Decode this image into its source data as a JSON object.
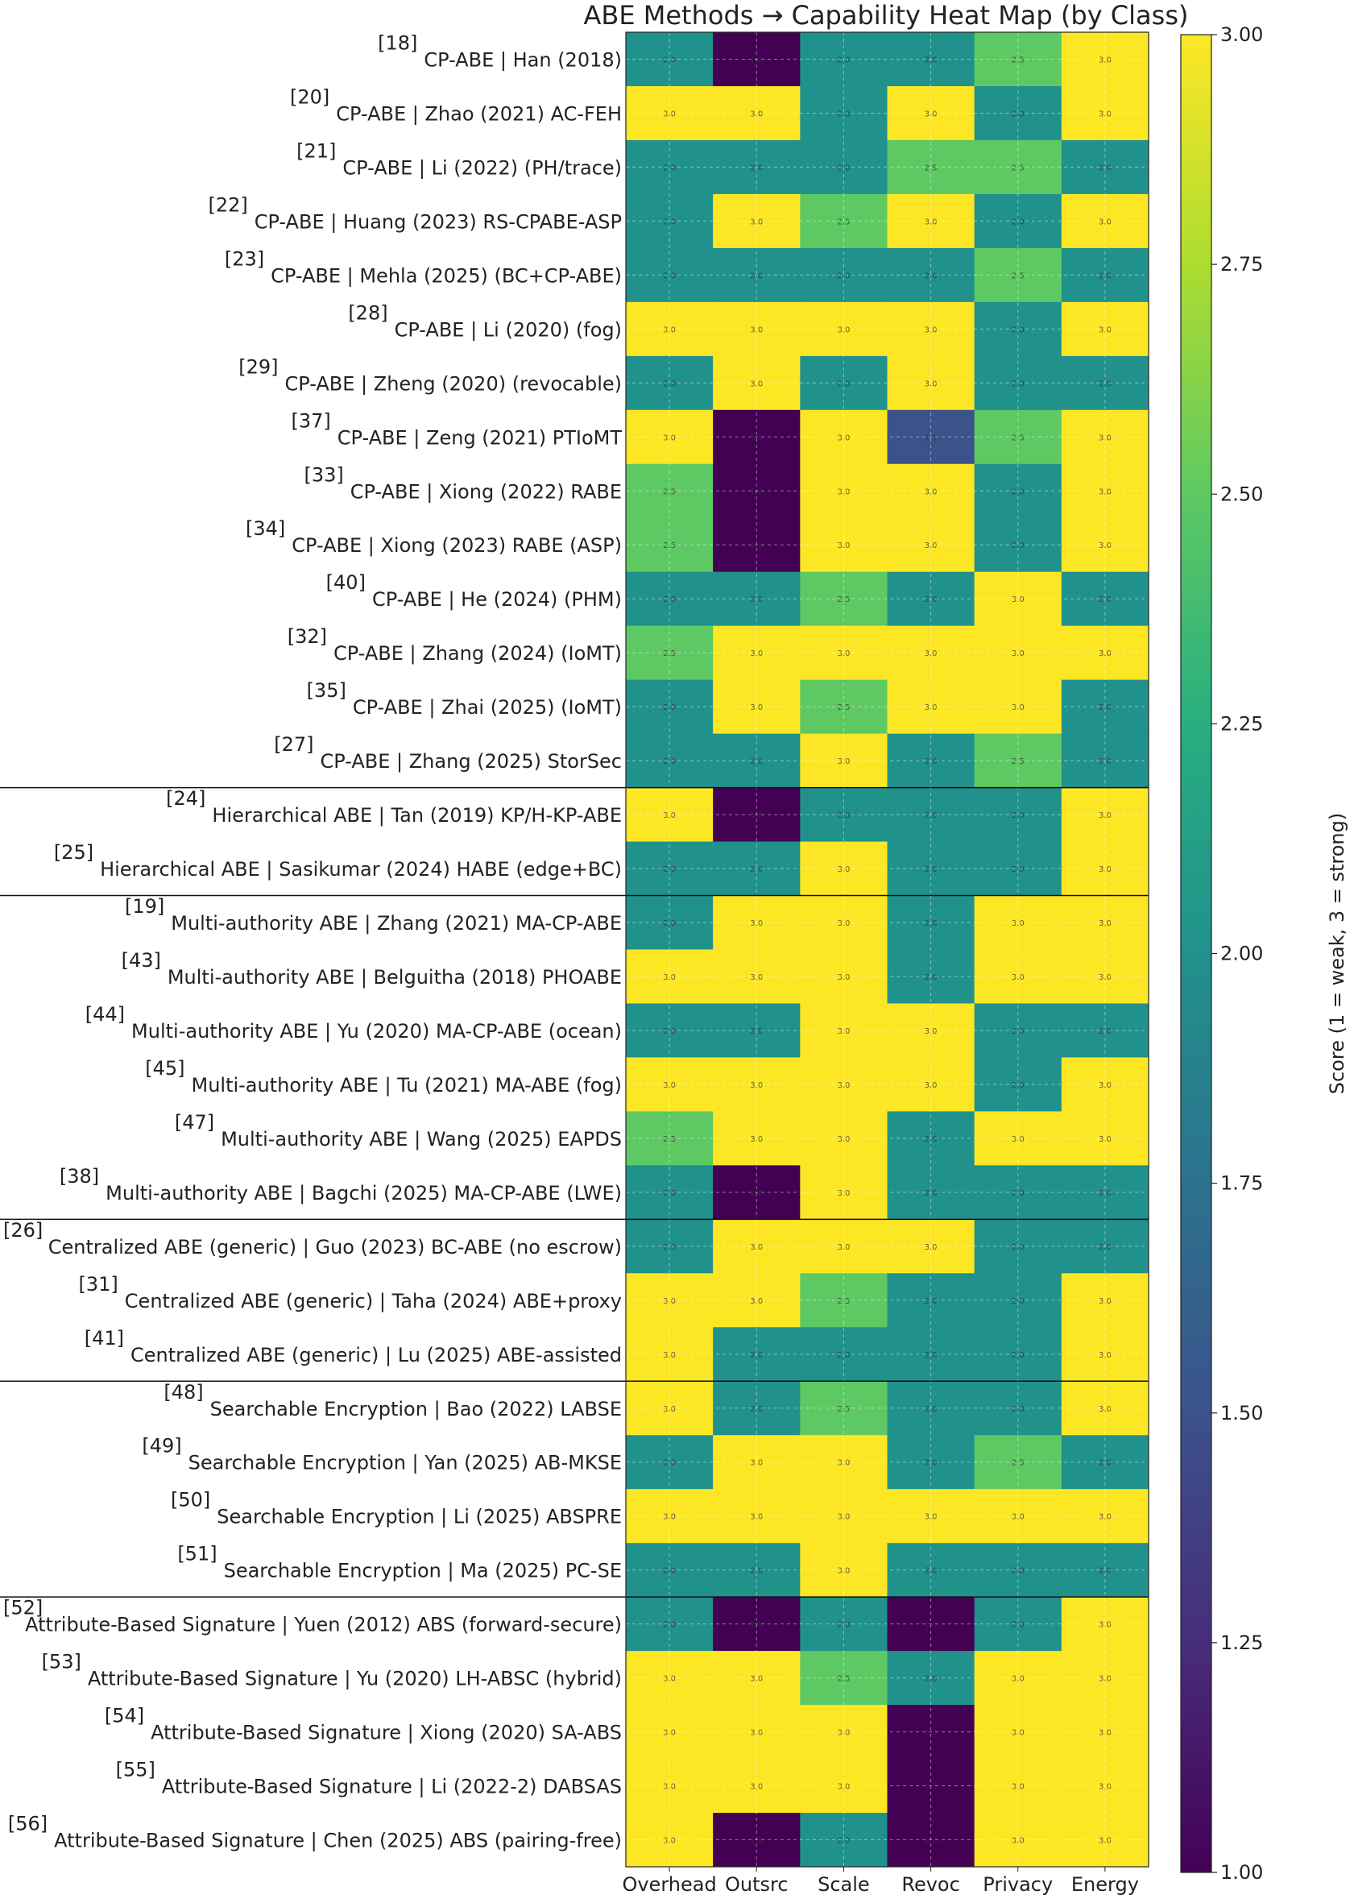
{
  "chart_data": {
    "type": "heatmap",
    "title": "ABE Methods → Capability Heat Map (by Class)",
    "columns": [
      "Overhead",
      "Outsrc",
      "Scale",
      "Revoc",
      "Privacy",
      "Energy"
    ],
    "rows": [
      {
        "ref": "[18]",
        "label": "CP-ABE | Han (2018)",
        "values": [
          2.0,
          1.0,
          2.0,
          2.0,
          2.5,
          3.0
        ]
      },
      {
        "ref": "[20]",
        "label": "CP-ABE | Zhao (2021) AC-FEH",
        "values": [
          3.0,
          3.0,
          2.0,
          3.0,
          2.0,
          3.0
        ]
      },
      {
        "ref": "[21]",
        "label": "CP-ABE | Li (2022) (PH/trace)",
        "values": [
          2.0,
          2.0,
          2.0,
          2.5,
          2.5,
          2.0
        ]
      },
      {
        "ref": "[22]",
        "label": "CP-ABE | Huang (2023) RS-CPABE-ASP",
        "values": [
          2.0,
          3.0,
          2.5,
          3.0,
          2.0,
          3.0
        ]
      },
      {
        "ref": "[23]",
        "label": "CP-ABE | Mehla (2025) (BC+CP-ABE)",
        "values": [
          2.0,
          2.0,
          2.0,
          2.0,
          2.5,
          2.0
        ]
      },
      {
        "ref": "[28]",
        "label": "CP-ABE | Li (2020) (fog)",
        "values": [
          3.0,
          3.0,
          3.0,
          3.0,
          2.0,
          3.0
        ]
      },
      {
        "ref": "[29]",
        "label": "CP-ABE | Zheng (2020) (revocable)",
        "values": [
          2.0,
          3.0,
          2.0,
          3.0,
          2.0,
          2.0
        ]
      },
      {
        "ref": "[37]",
        "label": "CP-ABE | Zeng (2021) PTIoMT",
        "values": [
          3.0,
          1.0,
          3.0,
          1.5,
          2.5,
          3.0
        ]
      },
      {
        "ref": "[33]",
        "label": "CP-ABE | Xiong (2022) RABE",
        "values": [
          2.5,
          1.0,
          3.0,
          3.0,
          2.0,
          3.0
        ]
      },
      {
        "ref": "[34]",
        "label": "CP-ABE | Xiong (2023) RABE (ASP)",
        "values": [
          2.5,
          1.0,
          3.0,
          3.0,
          2.0,
          3.0
        ]
      },
      {
        "ref": "[40]",
        "label": "CP-ABE | He (2024) (PHM)",
        "values": [
          2.0,
          2.0,
          2.5,
          2.0,
          3.0,
          2.0
        ]
      },
      {
        "ref": "[32]",
        "label": "CP-ABE | Zhang (2024) (IoMT)",
        "values": [
          2.5,
          3.0,
          3.0,
          3.0,
          3.0,
          3.0
        ]
      },
      {
        "ref": "[35]",
        "label": "CP-ABE | Zhai (2025) (IoMT)",
        "values": [
          2.0,
          3.0,
          2.5,
          3.0,
          3.0,
          2.0
        ]
      },
      {
        "ref": "[27]",
        "label": "CP-ABE | Zhang (2025) StorSec",
        "values": [
          2.0,
          2.0,
          3.0,
          2.0,
          2.5,
          2.0
        ]
      },
      {
        "ref": "[24]",
        "label": "Hierarchical ABE | Tan (2019) KP/H-KP-ABE",
        "values": [
          3.0,
          1.0,
          2.0,
          2.0,
          2.0,
          3.0
        ]
      },
      {
        "ref": "[25]",
        "label": "Hierarchical ABE | Sasikumar (2024) HABE (edge+BC)",
        "values": [
          2.0,
          2.0,
          3.0,
          2.0,
          2.0,
          3.0
        ]
      },
      {
        "ref": "[19]",
        "label": "Multi-authority ABE | Zhang (2021) MA-CP-ABE",
        "values": [
          2.0,
          3.0,
          3.0,
          2.0,
          3.0,
          3.0
        ]
      },
      {
        "ref": "[43]",
        "label": "Multi-authority ABE | Belguitha (2018) PHOABE",
        "values": [
          3.0,
          3.0,
          3.0,
          2.0,
          3.0,
          3.0
        ]
      },
      {
        "ref": "[44]",
        "label": "Multi-authority ABE | Yu (2020) MA-CP-ABE (ocean)",
        "values": [
          2.0,
          2.0,
          3.0,
          3.0,
          2.0,
          2.0
        ]
      },
      {
        "ref": "[45]",
        "label": "Multi-authority ABE | Tu (2021) MA-ABE (fog)",
        "values": [
          3.0,
          3.0,
          3.0,
          3.0,
          2.0,
          3.0
        ]
      },
      {
        "ref": "[47]",
        "label": "Multi-authority ABE | Wang (2025) EAPDS",
        "values": [
          2.5,
          3.0,
          3.0,
          2.0,
          3.0,
          3.0
        ]
      },
      {
        "ref": "[38]",
        "label": "Multi-authority ABE | Bagchi (2025) MA-CP-ABE (LWE)",
        "values": [
          2.0,
          1.0,
          3.0,
          2.0,
          2.0,
          2.0
        ]
      },
      {
        "ref": "[26]",
        "label": "Centralized ABE (generic) | Guo (2023) BC-ABE (no escrow)",
        "values": [
          2.0,
          3.0,
          3.0,
          3.0,
          2.0,
          2.0
        ]
      },
      {
        "ref": "[31]",
        "label": "Centralized ABE (generic) | Taha (2024) ABE+proxy",
        "values": [
          3.0,
          3.0,
          2.5,
          2.0,
          2.0,
          3.0
        ]
      },
      {
        "ref": "[41]",
        "label": "Centralized ABE (generic) | Lu (2025) ABE-assisted",
        "values": [
          3.0,
          2.0,
          2.0,
          2.0,
          2.0,
          3.0
        ]
      },
      {
        "ref": "[48]",
        "label": "Searchable Encryption | Bao (2022) LABSE",
        "values": [
          3.0,
          2.0,
          2.5,
          2.0,
          2.0,
          3.0
        ]
      },
      {
        "ref": "[49]",
        "label": "Searchable Encryption | Yan (2025) AB-MKSE",
        "values": [
          2.0,
          3.0,
          3.0,
          2.0,
          2.5,
          2.0
        ]
      },
      {
        "ref": "[50]",
        "label": "Searchable Encryption | Li (2025) ABSPRE",
        "values": [
          3.0,
          3.0,
          3.0,
          3.0,
          3.0,
          3.0
        ]
      },
      {
        "ref": "[51]",
        "label": "Searchable Encryption | Ma (2025) PC-SE",
        "values": [
          2.0,
          2.0,
          3.0,
          2.0,
          2.0,
          2.0
        ]
      },
      {
        "ref": "[52]",
        "label": "Attribute-Based Signature | Yuen (2012) ABS (forward-secure)",
        "values": [
          2.0,
          1.0,
          2.0,
          1.0,
          2.0,
          3.0
        ]
      },
      {
        "ref": "[53]",
        "label": "Attribute-Based Signature | Yu (2020) LH-ABSC (hybrid)",
        "values": [
          3.0,
          3.0,
          2.5,
          2.0,
          3.0,
          3.0
        ]
      },
      {
        "ref": "[54]",
        "label": "Attribute-Based Signature | Xiong (2020) SA-ABS",
        "values": [
          3.0,
          3.0,
          3.0,
          1.0,
          3.0,
          3.0
        ]
      },
      {
        "ref": "[55]",
        "label": "Attribute-Based Signature | Li (2022-2) DABSAS",
        "values": [
          3.0,
          3.0,
          3.0,
          1.0,
          3.0,
          3.0
        ]
      },
      {
        "ref": "[56]",
        "label": "Attribute-Based Signature | Chen (2025) ABS (pairing-free)",
        "values": [
          3.0,
          1.0,
          2.0,
          1.0,
          3.0,
          3.0
        ]
      }
    ],
    "class_separators_after_row": [
      13,
      15,
      21,
      24,
      28
    ],
    "colorbar": {
      "label": "Score (1 = weak, 3 = strong)",
      "range": [
        1.0,
        3.0
      ],
      "ticks": [
        "1.00",
        "1.25",
        "1.50",
        "1.75",
        "2.00",
        "2.25",
        "2.50",
        "2.75",
        "3.00"
      ],
      "colormap": "viridis"
    },
    "grid": true
  }
}
